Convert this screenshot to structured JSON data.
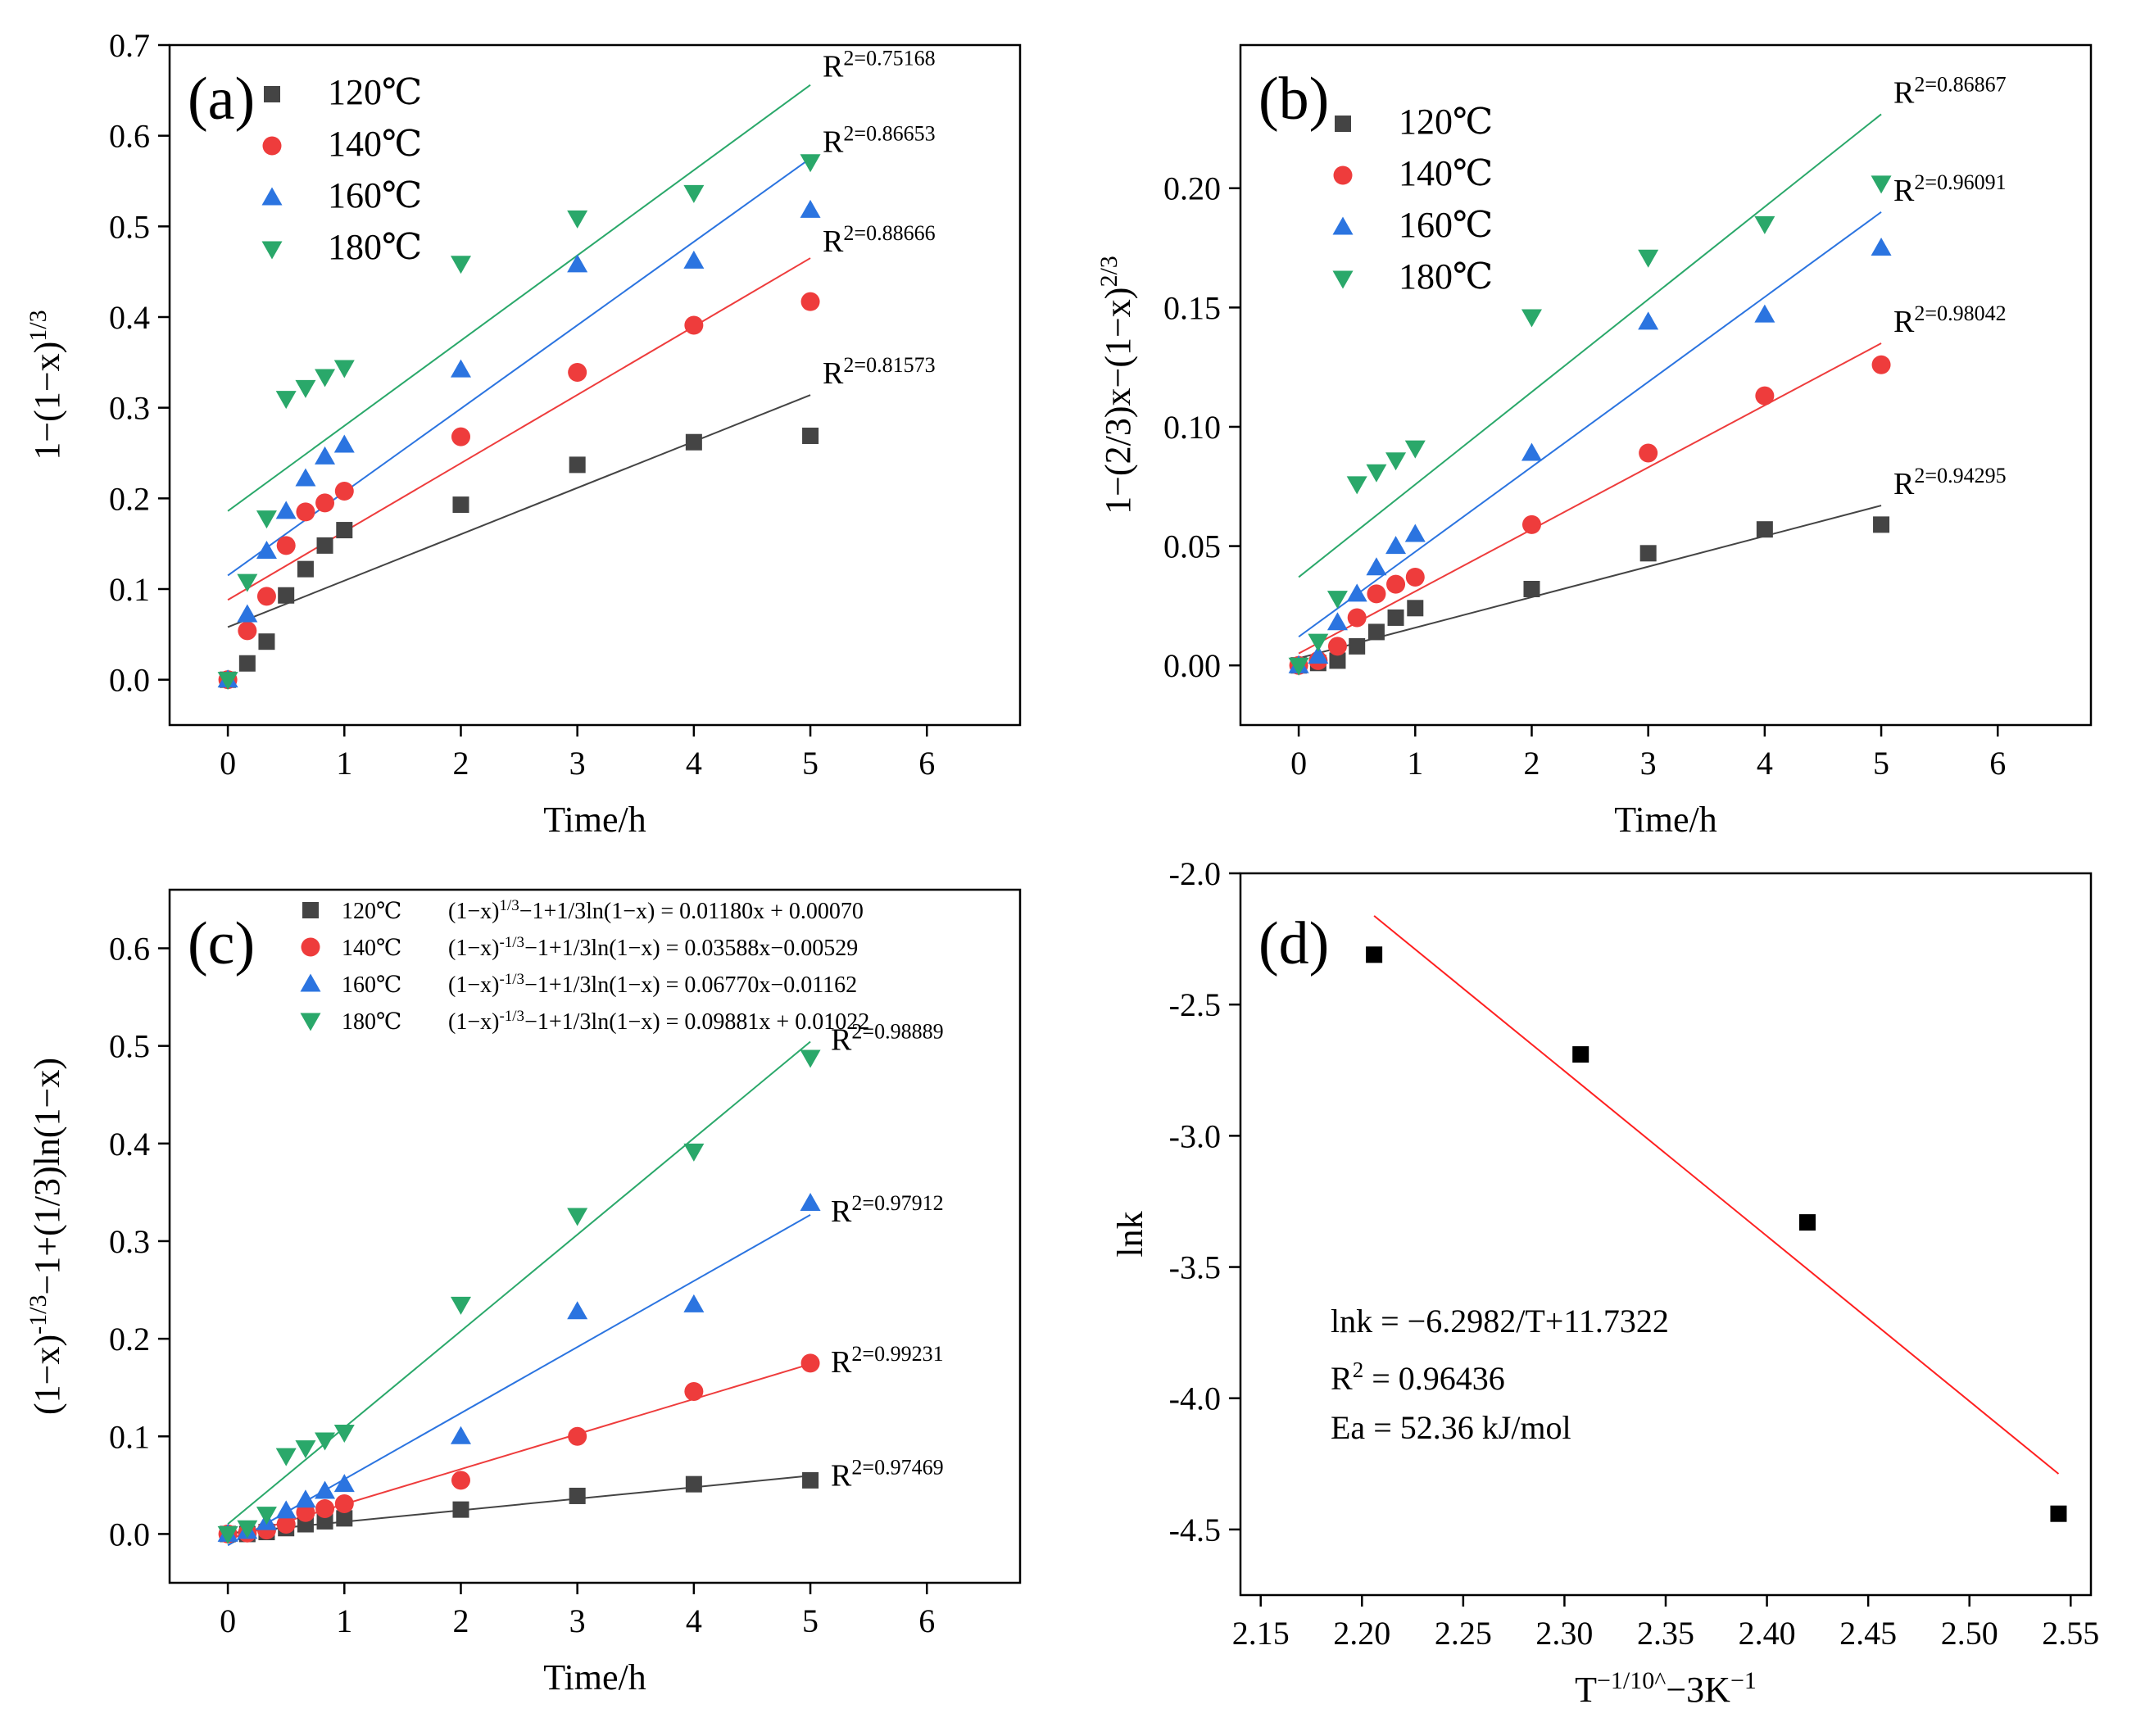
{
  "figure": {
    "colors": {
      "120": "#444444",
      "140": "#ee3c3c",
      "160": "#2b74e0",
      "180": "#2aa86a",
      "fit_d": "#ff2020",
      "black": "#000000"
    },
    "legend_labels": [
      "120℃",
      "140℃",
      "160℃",
      "180℃"
    ]
  },
  "chart_data": [
    {
      "id": "a",
      "type": "scatter",
      "panel_label": "(a)",
      "xlabel": "Time/h",
      "ylabel": "1−(1−x)^1/3",
      "xlim": [
        -0.5,
        6.8
      ],
      "ylim": [
        -0.05,
        0.7
      ],
      "xticks": [
        0,
        1,
        2,
        3,
        4,
        5,
        6
      ],
      "yticks": [
        0.0,
        0.1,
        0.2,
        0.3,
        0.4,
        0.5,
        0.6,
        0.7
      ],
      "x": [
        0,
        0.167,
        0.333,
        0.5,
        0.667,
        0.833,
        1,
        2,
        3,
        4,
        5
      ],
      "series": [
        {
          "name": "120℃",
          "marker": "square",
          "values": [
            0.0,
            0.018,
            0.042,
            0.093,
            0.122,
            0.148,
            0.165,
            0.193,
            0.237,
            0.262,
            0.269
          ],
          "fit": [
            0.058,
            0.314
          ],
          "r2": "R²=0.81573"
        },
        {
          "name": "140℃",
          "marker": "circle",
          "values": [
            0.0,
            0.054,
            0.092,
            0.148,
            0.185,
            0.195,
            0.208,
            0.268,
            0.339,
            0.391,
            0.417
          ],
          "fit": [
            0.088,
            0.465
          ],
          "r2": "R²=0.88666"
        },
        {
          "name": "160℃",
          "marker": "triangle-up",
          "values": [
            0.0,
            0.072,
            0.142,
            0.186,
            0.222,
            0.246,
            0.259,
            0.342,
            0.458,
            0.462,
            0.518
          ],
          "fit": [
            0.115,
            0.575
          ],
          "r2": "R²=0.86653"
        },
        {
          "name": "180℃",
          "marker": "triangle-down",
          "values": [
            0.0,
            0.108,
            0.178,
            0.31,
            0.322,
            0.334,
            0.344,
            0.459,
            0.509,
            0.537,
            0.571
          ],
          "fit": [
            0.186,
            0.656
          ],
          "r2": "R²=0.75168"
        }
      ]
    },
    {
      "id": "b",
      "type": "scatter",
      "panel_label": "(b)",
      "xlabel": "Time/h",
      "ylabel": "1−(2/3)x−(1−x)^2/3",
      "xlim": [
        -0.5,
        6.8
      ],
      "ylim": [
        -0.025,
        0.26
      ],
      "xticks": [
        0,
        1,
        2,
        3,
        4,
        5,
        6
      ],
      "yticks": [
        0.0,
        0.05,
        0.1,
        0.15,
        0.2
      ],
      "ytick_labels": [
        "0.00",
        "0.05",
        "0.10",
        "0.15",
        "0.20"
      ],
      "x": [
        0,
        0.167,
        0.333,
        0.5,
        0.667,
        0.833,
        1,
        2,
        3,
        4,
        5
      ],
      "series": [
        {
          "name": "120℃",
          "marker": "square",
          "values": [
            0.0,
            0.001,
            0.002,
            0.008,
            0.014,
            0.02,
            0.024,
            0.032,
            0.047,
            0.057,
            0.059
          ],
          "fit": [
            0.003,
            0.067
          ],
          "r2": "R²=0.94295"
        },
        {
          "name": "140℃",
          "marker": "circle",
          "values": [
            0.0,
            0.002,
            0.008,
            0.02,
            0.03,
            0.034,
            0.037,
            0.059,
            0.089,
            0.113,
            0.126
          ],
          "fit": [
            0.005,
            0.135
          ],
          "r2": "R²=0.98042"
        },
        {
          "name": "160℃",
          "marker": "triangle-up",
          "values": [
            0.0,
            0.004,
            0.018,
            0.03,
            0.041,
            0.05,
            0.055,
            0.089,
            0.144,
            0.147,
            0.175
          ],
          "fit": [
            0.012,
            0.19
          ],
          "r2": "R²=0.96091"
        },
        {
          "name": "180℃",
          "marker": "triangle-down",
          "values": [
            0.0,
            0.01,
            0.028,
            0.076,
            0.081,
            0.086,
            0.091,
            0.146,
            0.171,
            0.185,
            0.202
          ],
          "fit": [
            0.037,
            0.231
          ],
          "r2": "R²=0.86867"
        }
      ]
    },
    {
      "id": "c",
      "type": "scatter",
      "panel_label": "(c)",
      "xlabel": "Time/h",
      "ylabel": "(1−x)^-1/3−1+(1/3)ln(1−x)",
      "xlim": [
        -0.5,
        6.8
      ],
      "ylim": [
        -0.05,
        0.66
      ],
      "xticks": [
        0,
        1,
        2,
        3,
        4,
        5,
        6
      ],
      "yticks": [
        0.0,
        0.1,
        0.2,
        0.3,
        0.4,
        0.5,
        0.6
      ],
      "x": [
        0,
        0.167,
        0.333,
        0.5,
        0.667,
        0.833,
        1,
        2,
        3,
        4,
        5
      ],
      "equations": [
        "(1−x)^1/3−1+1/3ln(1−x) = 0.01180x + 0.00070",
        "(1−x)^-1/3−1+1/3ln(1−x) = 0.03588x−0.00529",
        "(1−x)^-1/3−1+1/3ln(1−x) = 0.06770x−0.01162",
        "(1−x)^-1/3−1+1/3ln(1−x) = 0.09881x + 0.01022"
      ],
      "series": [
        {
          "name": "120℃",
          "marker": "square",
          "values": [
            0.0,
            0.0,
            0.002,
            0.006,
            0.01,
            0.013,
            0.016,
            0.025,
            0.039,
            0.051,
            0.055
          ],
          "fit": [
            0.0007,
            0.0597
          ],
          "r2": "R²=0.97469"
        },
        {
          "name": "140℃",
          "marker": "circle",
          "values": [
            0.0,
            0.001,
            0.004,
            0.01,
            0.022,
            0.026,
            0.031,
            0.055,
            0.1,
            0.146,
            0.175
          ],
          "fit": [
            -0.0053,
            0.1741
          ],
          "r2": "R²=0.99231"
        },
        {
          "name": "160℃",
          "marker": "triangle-up",
          "values": [
            0.0,
            0.003,
            0.012,
            0.024,
            0.035,
            0.044,
            0.051,
            0.1,
            0.228,
            0.235,
            0.339
          ],
          "fit": [
            -0.0116,
            0.3269
          ],
          "r2": "R²=0.97912"
        },
        {
          "name": "180℃",
          "marker": "triangle-down",
          "values": [
            0.0,
            0.006,
            0.02,
            0.08,
            0.088,
            0.096,
            0.104,
            0.235,
            0.326,
            0.392,
            0.488
          ],
          "fit": [
            0.0102,
            0.5043
          ],
          "r2": "R²=0.98889"
        }
      ]
    },
    {
      "id": "d",
      "type": "scatter",
      "panel_label": "(d)",
      "xlabel": "T^−1/10^−3K^−1",
      "ylabel": "lnk",
      "xlim": [
        2.14,
        2.56
      ],
      "ylim": [
        -4.75,
        -2.0
      ],
      "xticks": [
        2.15,
        2.2,
        2.25,
        2.3,
        2.35,
        2.4,
        2.45,
        2.5,
        2.55
      ],
      "xtick_labels": [
        "2.15",
        "2.20",
        "2.25",
        "2.30",
        "2.35",
        "2.40",
        "2.45",
        "2.50",
        "2.55"
      ],
      "yticks": [
        -2.0,
        -2.5,
        -3.0,
        -3.5,
        -4.0,
        -4.5
      ],
      "ytick_labels": [
        "-2.0",
        "-2.5",
        "-3.0",
        "-3.5",
        "-4.0",
        "-4.5"
      ],
      "x": [
        2.206,
        2.308,
        2.42,
        2.544
      ],
      "series": [
        {
          "name": "lnk",
          "marker": "square",
          "values": [
            -2.31,
            -2.69,
            -3.33,
            -4.44
          ]
        }
      ],
      "fit": {
        "x": [
          2.206,
          2.544
        ],
        "y": [
          -2.162,
          -4.288
        ]
      },
      "annotations": [
        "lnk = −6.2982/T+11.7322",
        "R² = 0.96436",
        "Ea = 52.36 kJ/mol"
      ]
    }
  ]
}
